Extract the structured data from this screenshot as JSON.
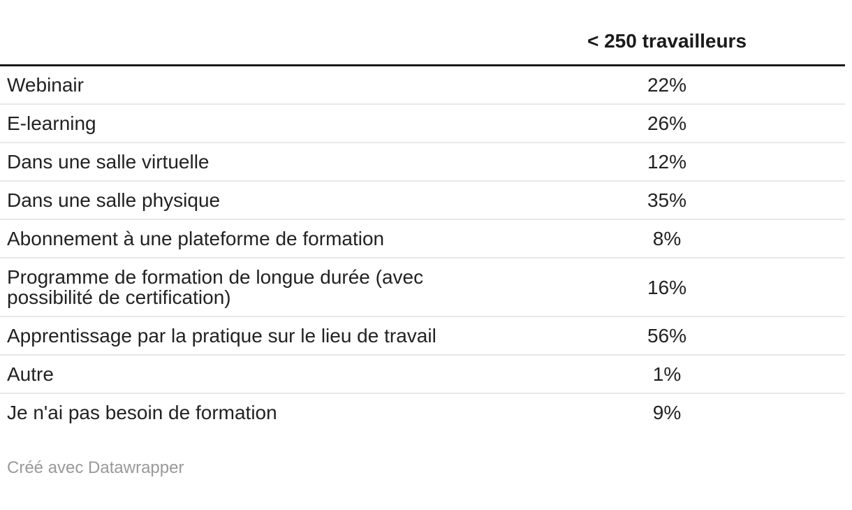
{
  "colors": {
    "text": "#222222",
    "header_text": "#1a1a1a",
    "header_rule": "#1a1a1a",
    "row_divider": "#e8e8e8",
    "attribution_text": "#999999",
    "background": "#ffffff"
  },
  "table": {
    "label_column_header": "",
    "value_column_header": "< 250 travailleurs",
    "rows": [
      {
        "label": "Webinair",
        "value": "22%"
      },
      {
        "label": "E-learning",
        "value": "26%"
      },
      {
        "label": "Dans une salle virtuelle",
        "value": "12%"
      },
      {
        "label": "Dans une salle physique",
        "value": "35%"
      },
      {
        "label": "Abonnement à une plateforme de formation",
        "value": "8%"
      },
      {
        "label": "Programme de formation de longue durée (avec possibilité de certification)",
        "value": "16%"
      },
      {
        "label": "Apprentissage par la pratique sur le lieu de travail",
        "value": "56%"
      },
      {
        "label": "Autre",
        "value": "1%"
      },
      {
        "label": "Je n'ai pas besoin de formation",
        "value": "9%"
      }
    ]
  },
  "footer": {
    "attribution": "Créé avec Datawrapper"
  },
  "chart_data": {
    "type": "table",
    "title": "",
    "columns": [
      "",
      "< 250 travailleurs"
    ],
    "categories": [
      "Webinair",
      "E-learning",
      "Dans une salle virtuelle",
      "Dans une salle physique",
      "Abonnement à une plateforme de formation",
      "Programme de formation de longue durée (avec possibilité de certification)",
      "Apprentissage par la pratique sur le lieu de travail",
      "Autre",
      "Je n'ai pas besoin de formation"
    ],
    "values_pct": [
      22,
      26,
      12,
      35,
      8,
      16,
      56,
      1,
      9
    ],
    "value_suffix": "%",
    "layout_hints": {
      "value_column_align": "center",
      "header_rule": "thick-black",
      "row_dividers": "light-gray",
      "gridlines": "horizontal-only"
    }
  }
}
